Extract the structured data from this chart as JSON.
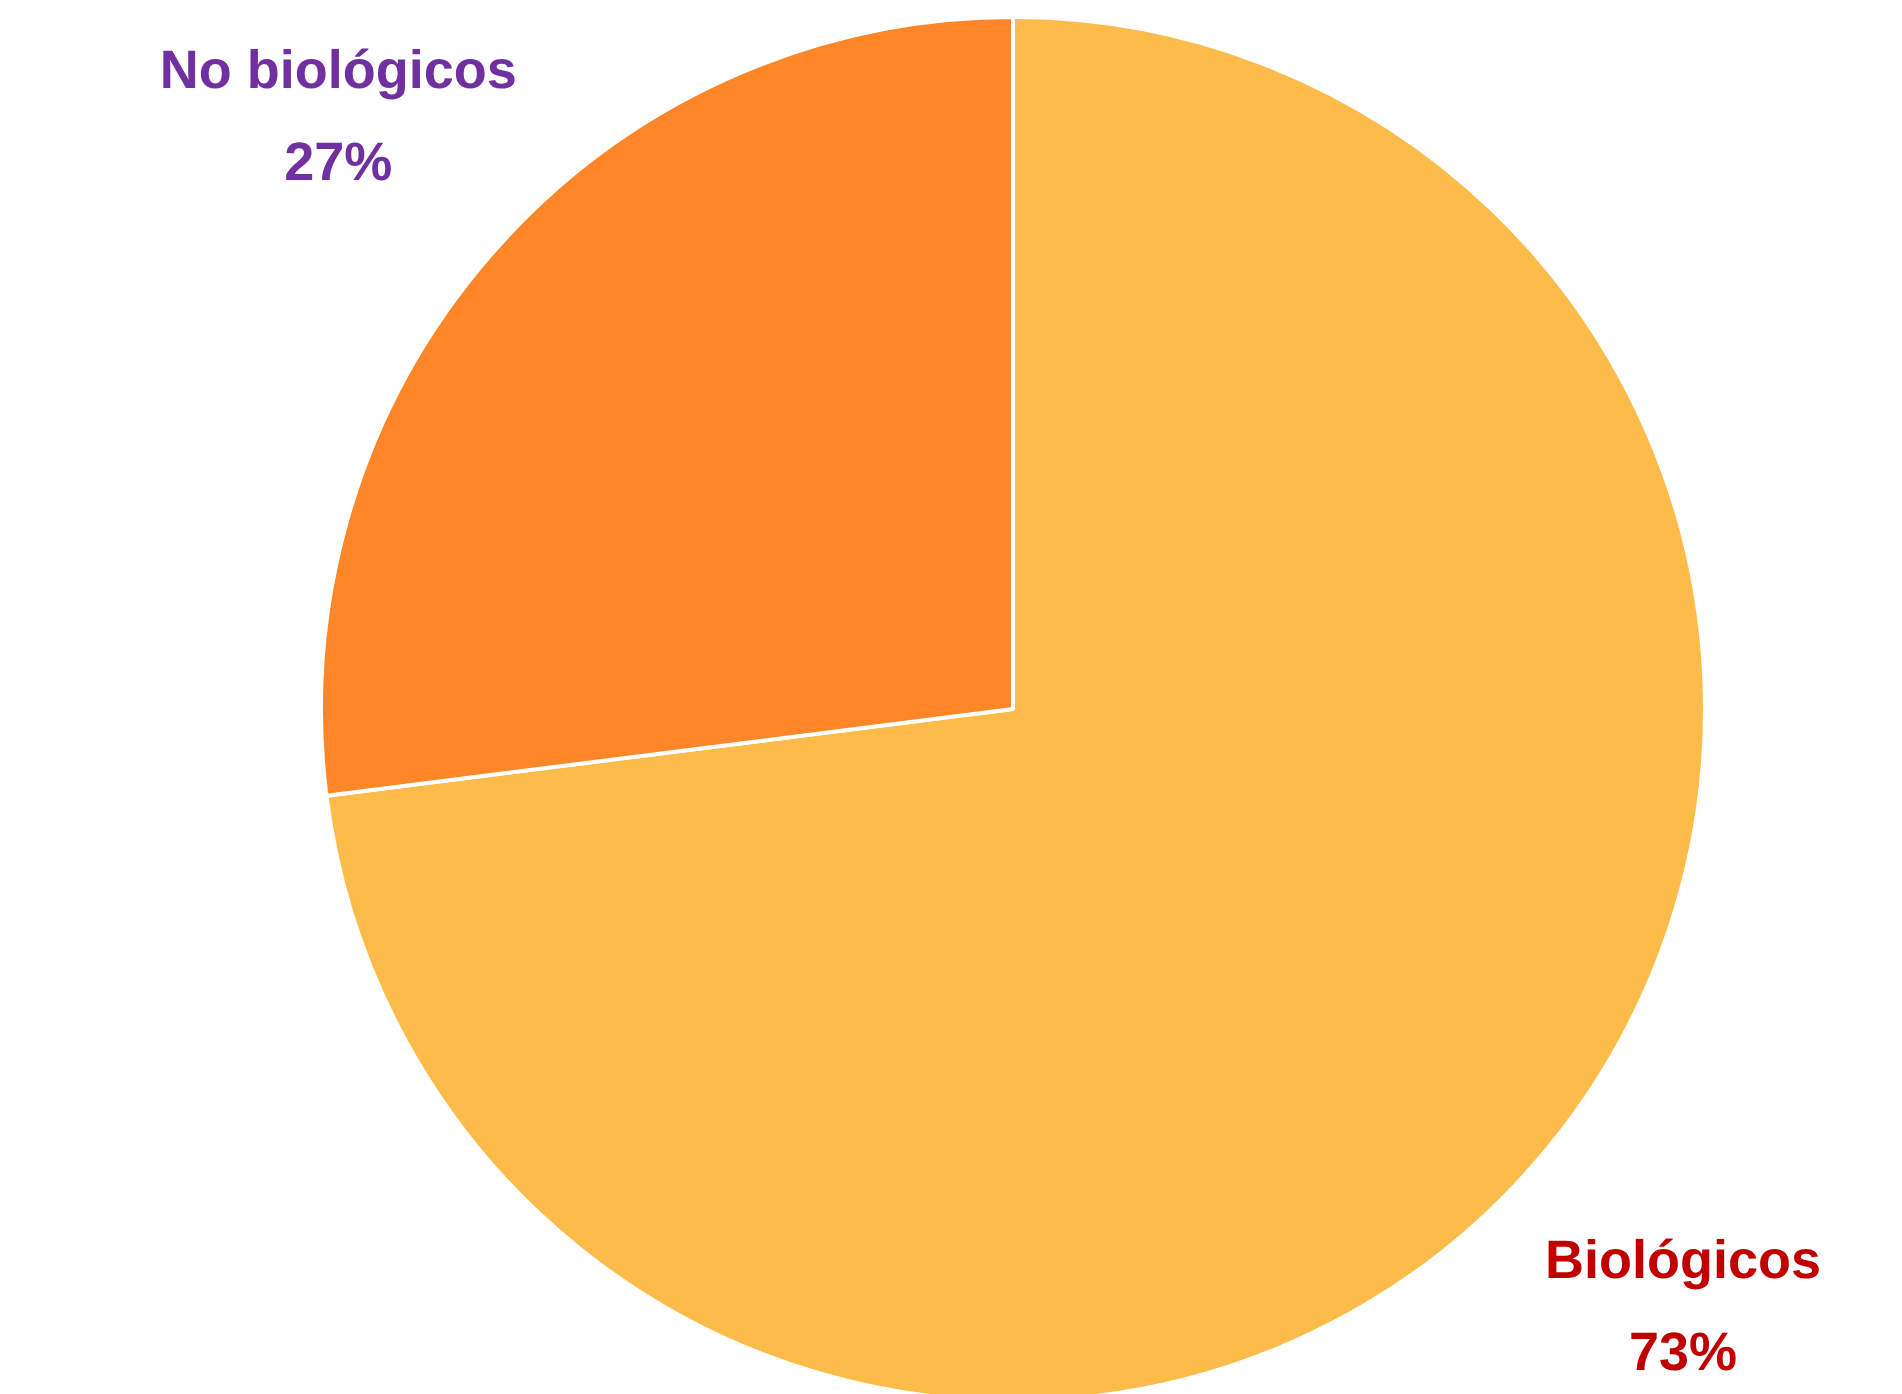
{
  "chart_data": {
    "type": "pie",
    "categories": [
      "Biológicos",
      "No biológicos"
    ],
    "values": [
      73,
      27
    ],
    "colors": [
      "#fdbb4a",
      "#fd8628"
    ],
    "value_labels": [
      "73%",
      "27%"
    ]
  }
}
